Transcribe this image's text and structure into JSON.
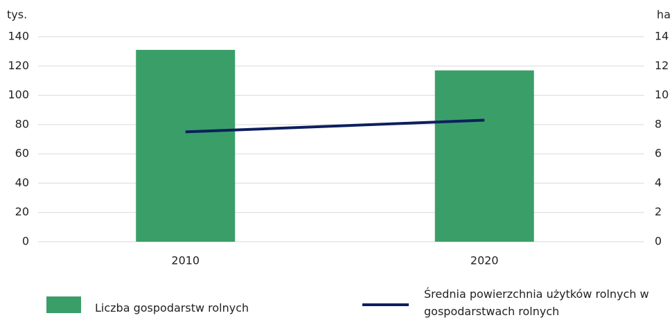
{
  "chart_data": {
    "type": "bar",
    "ylabel": "tys.",
    "y2label": "ha",
    "categories": [
      "2010",
      "2020"
    ],
    "series": [
      {
        "name": "Liczba gospodarstw rolnych",
        "color": "#3a9e68",
        "values": [
          131,
          117
        ]
      },
      {
        "name": "Średnia powierzchnia użytków rolnych w gospodarstwach rolnych",
        "type": "line",
        "axis": "y2",
        "color": "#0c1f5e",
        "values": [
          7.5,
          8.3
        ]
      }
    ],
    "ylim": [
      0,
      140
    ],
    "yticks": [
      0,
      20,
      40,
      60,
      80,
      100,
      120,
      140
    ],
    "y2lim": [
      0,
      14
    ],
    "y2ticks": [
      0,
      2,
      4,
      6,
      8,
      10,
      12,
      14
    ],
    "grid": true
  }
}
